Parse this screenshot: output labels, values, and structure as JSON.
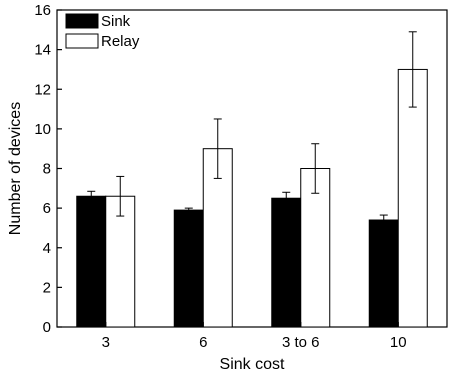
{
  "chart_data": {
    "type": "bar",
    "title": "",
    "xlabel": "Sink cost",
    "ylabel": "Number of devices",
    "categories": [
      "3",
      "6",
      "3 to 6",
      "10"
    ],
    "ylim": [
      0,
      16
    ],
    "yticks": [
      0,
      2,
      4,
      6,
      8,
      10,
      12,
      14,
      16
    ],
    "legend_position": "top-left",
    "grid": false,
    "series": [
      {
        "name": "Sink",
        "fill": "#000000",
        "values": [
          6.6,
          5.9,
          6.5,
          5.4
        ],
        "errors": [
          0.25,
          0.1,
          0.3,
          0.25
        ]
      },
      {
        "name": "Relay",
        "fill": "#ffffff",
        "values": [
          6.6,
          9.0,
          8.0,
          13.0
        ],
        "errors": [
          1.0,
          1.5,
          1.25,
          1.9
        ]
      }
    ]
  }
}
